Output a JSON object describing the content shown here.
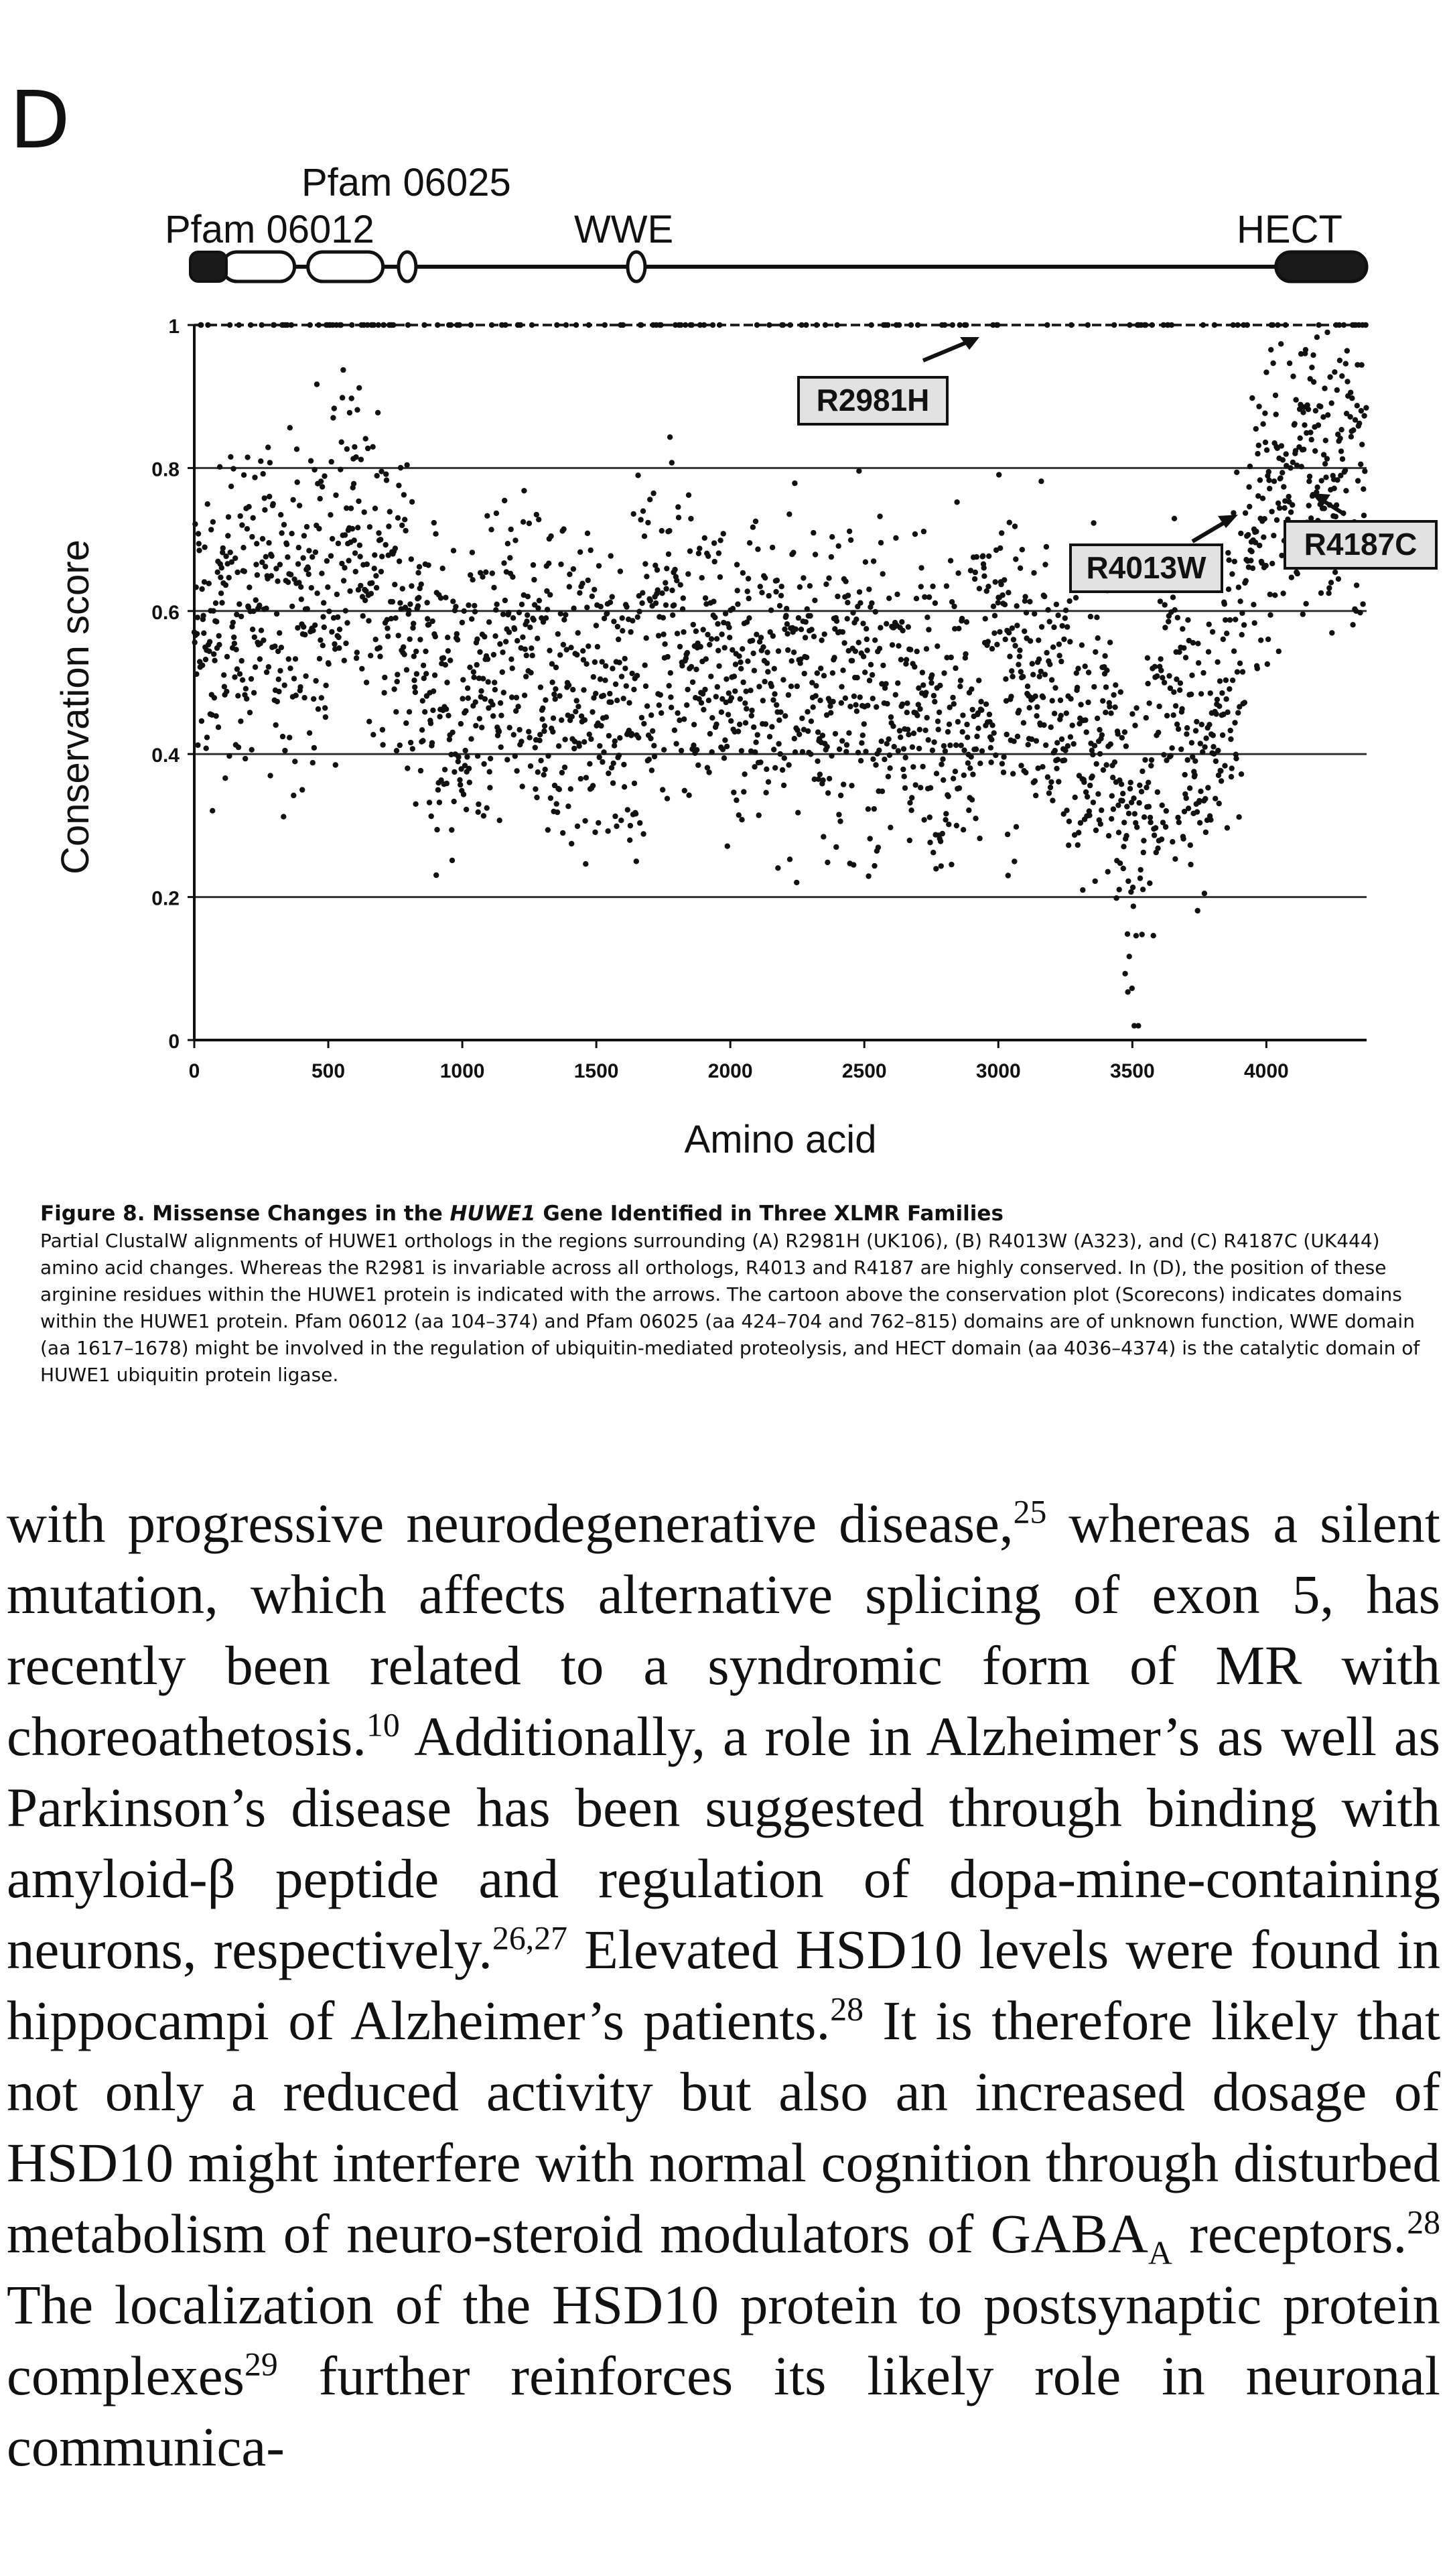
{
  "panel_label": "D",
  "domains": {
    "pfam06012": "Pfam 06012",
    "pfam06025": "Pfam 06025",
    "wwe": "WWE",
    "hect": "HECT"
  },
  "mutations": {
    "r2981h": "R2981H",
    "r4013w": "R4013W",
    "r4187c": "R4187C"
  },
  "chart_data": {
    "type": "scatter",
    "xlabel": "Amino acid",
    "ylabel": "Conservation score",
    "xlim": [
      0,
      4374
    ],
    "ylim": [
      0,
      1
    ],
    "x_ticks": [
      "0",
      "500",
      "1000",
      "1500",
      "2000",
      "2500",
      "3000",
      "3500",
      "4000"
    ],
    "y_ticks": [
      "0",
      "0.2",
      "0.4",
      "0.6",
      "0.8",
      "1"
    ],
    "grid": "horizontal",
    "annotations": [
      {
        "label": "R2981H",
        "x": 2981,
        "y": 1.0
      },
      {
        "label": "R4013W",
        "x": 4013,
        "y": 0.85
      },
      {
        "label": "R4187C",
        "x": 4187,
        "y": 0.78
      }
    ],
    "domain_track": [
      {
        "name": "Pfam 06012",
        "start": 104,
        "end": 374
      },
      {
        "name": "Pfam 06025",
        "start": 424,
        "end": 704
      },
      {
        "name": "Pfam 06025",
        "start": 762,
        "end": 815
      },
      {
        "name": "WWE",
        "start": 1617,
        "end": 1678
      },
      {
        "name": "HECT",
        "start": 4036,
        "end": 4374
      }
    ],
    "profile": [
      {
        "x": 0,
        "y": 0.55
      },
      {
        "x": 200,
        "y": 0.62
      },
      {
        "x": 400,
        "y": 0.6
      },
      {
        "x": 600,
        "y": 0.7
      },
      {
        "x": 800,
        "y": 0.58
      },
      {
        "x": 1000,
        "y": 0.42
      },
      {
        "x": 1200,
        "y": 0.55
      },
      {
        "x": 1400,
        "y": 0.48
      },
      {
        "x": 1600,
        "y": 0.5
      },
      {
        "x": 1800,
        "y": 0.58
      },
      {
        "x": 2000,
        "y": 0.5
      },
      {
        "x": 2200,
        "y": 0.52
      },
      {
        "x": 2400,
        "y": 0.5
      },
      {
        "x": 2600,
        "y": 0.48
      },
      {
        "x": 2800,
        "y": 0.45
      },
      {
        "x": 3000,
        "y": 0.55
      },
      {
        "x": 3200,
        "y": 0.45
      },
      {
        "x": 3400,
        "y": 0.45
      },
      {
        "x": 3500,
        "y": 0.2
      },
      {
        "x": 3600,
        "y": 0.48
      },
      {
        "x": 3800,
        "y": 0.4
      },
      {
        "x": 3900,
        "y": 0.6
      },
      {
        "x": 4000,
        "y": 0.75
      },
      {
        "x": 4200,
        "y": 0.82
      },
      {
        "x": 4374,
        "y": 0.8
      }
    ]
  },
  "caption": {
    "title_prefix": "Figure 8.   Missense Changes in the ",
    "title_gene": "HUWE1",
    "title_suffix": " Gene Identified in Three XLMR Families",
    "body": "Partial ClustalW alignments of HUWE1 orthologs in the regions surrounding (A) R2981H (UK106), (B) R4013W (A323), and (C) R4187C (UK444) amino acid changes. Whereas the R2981 is invariable across all orthologs, R4013 and R4187 are highly conserved. In (D), the position of these arginine residues within the HUWE1 protein is indicated with the arrows. The cartoon above the conservation plot (Scorecons) indicates domains within the HUWE1 protein. Pfam 06012 (aa 104–374) and Pfam 06025 (aa 424–704 and 762–815) domains are of unknown function, WWE domain (aa 1617–1678) might be involved in the regulation of ubiquitin-mediated proteolysis, and HECT domain (aa 4036–4374) is the catalytic domain of HUWE1 ubiquitin protein ligase."
  },
  "body_text": {
    "seg1": "with progressive neurodegenerative disease,",
    "ref1": "25",
    "seg2": " whereas a silent mutation, which affects alternative splicing of exon 5, has recently been related to a syndromic form of MR with choreoathetosis.",
    "ref2": "10",
    "seg3": " Additionally, a role in Alzheimer’s as well as Parkinson’s disease has been suggested through binding with amyloid-β peptide and regulation of dopa-mine-containing neurons, respectively.",
    "ref3": "26,27",
    "seg4": " Elevated HSD10 levels were found in hippocampi of Alzheimer’s patients.",
    "ref4": "28",
    "seg5": " It is therefore likely that not only a reduced activity but also an increased dosage of HSD10 might interfere with normal cognition through disturbed metabolism of neuro-steroid modulators of GABA",
    "sub1": "A",
    "seg6": " receptors.",
    "ref5": "28",
    "seg7": " The localization of the HSD10 protein to postsynaptic protein complexes",
    "ref6": "29",
    "seg8": " further reinforces its likely role in neuronal communica-"
  }
}
